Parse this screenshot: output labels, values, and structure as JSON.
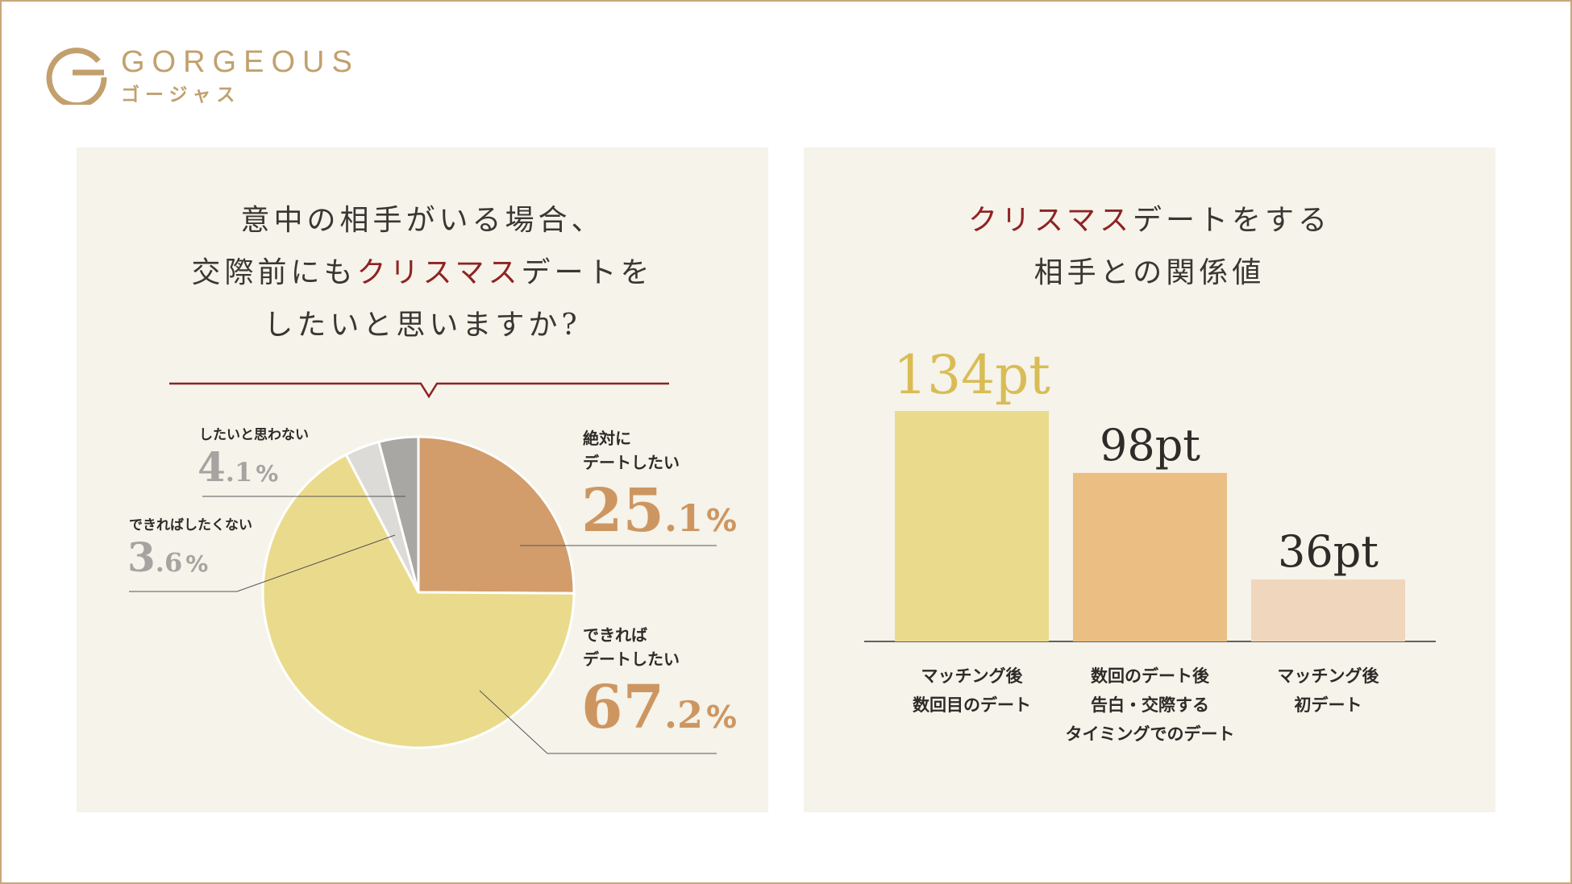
{
  "brand": {
    "name": "GORGEOUS",
    "kana": "ゴージャス",
    "color": "#c2a06e"
  },
  "left_panel": {
    "title_line1": "意中の相手がいる場合、",
    "title_line2_a": "交際前にも",
    "title_line2_accent": "クリスマス",
    "title_line2_b": "デートを",
    "title_line3": "したいと思いますか?"
  },
  "right_panel": {
    "title_line1_accent": "クリスマス",
    "title_line1_b": "デートをする",
    "title_line2": "相手との関係値"
  },
  "colors": {
    "accent": "#8e2323",
    "panel_bg": "#f5f3ea"
  },
  "chart_data": [
    {
      "type": "pie",
      "title": "意中の相手がいる場合、交際前にもクリスマスデートをしたいと思いますか?",
      "slices": [
        {
          "label_lines": [
            "絶対に",
            "デートしたい"
          ],
          "value": 25.1,
          "int": "25",
          "dec": ".1",
          "unit": "%",
          "color": "#d29d6b",
          "text_color": "#cd9661"
        },
        {
          "label_lines": [
            "できれば",
            "デートしたい"
          ],
          "value": 67.2,
          "int": "67",
          "dec": ".2",
          "unit": "%",
          "color": "#eadb8c",
          "text_color": "#cd9661"
        },
        {
          "label_lines": [
            "できればしたくない"
          ],
          "value": 3.6,
          "int": "3",
          "dec": ".6",
          "unit": "%",
          "color": "#dcdbd8",
          "text_color": "#a6a4a0"
        },
        {
          "label_lines": [
            "したいと思わない"
          ],
          "value": 4.1,
          "int": "4",
          "dec": ".1",
          "unit": "%",
          "color": "#a8a7a4",
          "text_color": "#a6a4a0"
        }
      ]
    },
    {
      "type": "bar",
      "title": "クリスマスデートをする相手との関係値",
      "unit": "pt",
      "ylim": [
        0,
        134
      ],
      "bars": [
        {
          "label_lines": [
            "マッチング後",
            "数回目のデート"
          ],
          "value": 134,
          "value_label": "134pt",
          "color": "#eadb8c",
          "label_color": "#d9bc55"
        },
        {
          "label_lines": [
            "数回のデート後",
            "告白・交際する",
            "タイミングでのデート"
          ],
          "value": 98,
          "value_label": "98pt",
          "color": "#ebbf84",
          "label_color": "#2e2b28"
        },
        {
          "label_lines": [
            "マッチング後",
            "初デート"
          ],
          "value": 36,
          "value_label": "36pt",
          "color": "#f0d6bc",
          "label_color": "#2e2b28"
        }
      ]
    }
  ]
}
